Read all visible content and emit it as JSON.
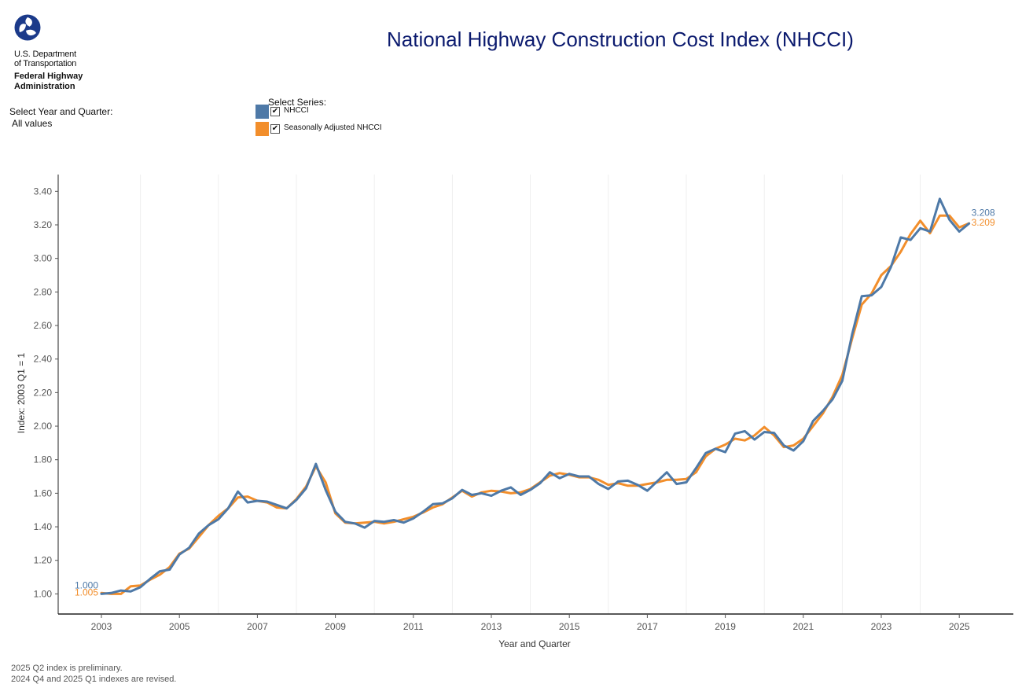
{
  "header": {
    "dept_line1": "U.S. Department",
    "dept_line2": "of Transportation",
    "agency_line1": "Federal Highway",
    "agency_line2": "Administration",
    "title": "National Highway Construction Cost Index (NHCCI)"
  },
  "filters": {
    "year_quarter_label": "Select Year and Quarter:",
    "year_quarter_value": "All values",
    "series_label": "Select Series:",
    "series": [
      {
        "label": "NHCCI",
        "checked": true,
        "color": "#4e79a7"
      },
      {
        "label": "Seasonally Adjusted NHCCI",
        "checked": true,
        "color": "#f28e2b"
      }
    ]
  },
  "chart_data": {
    "type": "line",
    "title": "National Highway Construction Cost Index (NHCCI)",
    "xlabel": "Year and Quarter",
    "ylabel": "Index: 2003 Q1 = 1",
    "x_start_year": 2003,
    "x_start_quarter": 1,
    "x_tick_labels": [
      "2003",
      "2005",
      "2007",
      "2009",
      "2011",
      "2013",
      "2015",
      "2017",
      "2019",
      "2021",
      "2023",
      "2025"
    ],
    "ylim": [
      0.88,
      3.5
    ],
    "y_ticks": [
      1.0,
      1.2,
      1.4,
      1.6,
      1.8,
      2.0,
      2.2,
      2.4,
      2.6,
      2.8,
      3.0,
      3.2,
      3.4
    ],
    "y_tick_labels": [
      "1.00",
      "1.20",
      "1.40",
      "1.60",
      "1.80",
      "2.00",
      "2.20",
      "2.40",
      "2.60",
      "2.80",
      "3.00",
      "3.20",
      "3.40"
    ],
    "grid": "vertical",
    "series": [
      {
        "name": "NHCCI",
        "color": "#4e79a7",
        "start_label": "1.000",
        "end_label": "3.208",
        "values": [
          1.0,
          1.005,
          1.02,
          1.015,
          1.04,
          1.09,
          1.135,
          1.145,
          1.235,
          1.275,
          1.36,
          1.41,
          1.445,
          1.51,
          1.61,
          1.545,
          1.555,
          1.55,
          1.53,
          1.51,
          1.56,
          1.63,
          1.775,
          1.62,
          1.49,
          1.43,
          1.42,
          1.395,
          1.435,
          1.43,
          1.44,
          1.425,
          1.45,
          1.49,
          1.535,
          1.54,
          1.57,
          1.62,
          1.59,
          1.6,
          1.585,
          1.615,
          1.635,
          1.59,
          1.62,
          1.66,
          1.725,
          1.69,
          1.715,
          1.7,
          1.7,
          1.655,
          1.625,
          1.67,
          1.675,
          1.65,
          1.615,
          1.67,
          1.725,
          1.655,
          1.665,
          1.75,
          1.84,
          1.865,
          1.845,
          1.955,
          1.97,
          1.92,
          1.965,
          1.96,
          1.885,
          1.855,
          1.91,
          2.03,
          2.09,
          2.16,
          2.27,
          2.545,
          2.775,
          2.78,
          2.83,
          2.95,
          3.125,
          3.11,
          3.18,
          3.16,
          3.355,
          3.23,
          3.16,
          3.208
        ]
      },
      {
        "name": "Seasonally Adjusted NHCCI",
        "color": "#f28e2b",
        "start_label": "1.005",
        "end_label": "3.209",
        "values": [
          1.005,
          1.0,
          1.0,
          1.045,
          1.05,
          1.085,
          1.115,
          1.16,
          1.24,
          1.27,
          1.34,
          1.41,
          1.465,
          1.51,
          1.575,
          1.58,
          1.555,
          1.545,
          1.515,
          1.51,
          1.565,
          1.64,
          1.76,
          1.665,
          1.48,
          1.425,
          1.42,
          1.425,
          1.43,
          1.42,
          1.43,
          1.445,
          1.46,
          1.485,
          1.515,
          1.535,
          1.575,
          1.615,
          1.58,
          1.605,
          1.615,
          1.61,
          1.6,
          1.605,
          1.625,
          1.665,
          1.705,
          1.72,
          1.71,
          1.695,
          1.695,
          1.68,
          1.65,
          1.66,
          1.645,
          1.645,
          1.655,
          1.665,
          1.68,
          1.68,
          1.685,
          1.725,
          1.82,
          1.865,
          1.89,
          1.925,
          1.915,
          1.945,
          1.995,
          1.945,
          1.875,
          1.885,
          1.925,
          2.0,
          2.075,
          2.175,
          2.305,
          2.52,
          2.725,
          2.79,
          2.9,
          2.955,
          3.04,
          3.145,
          3.225,
          3.15,
          3.255,
          3.255,
          3.185,
          3.209
        ]
      }
    ]
  },
  "footnotes": {
    "line1": "2025 Q2 index is preliminary.",
    "line2": "2024 Q4 and 2025 Q1 indexes are revised."
  }
}
